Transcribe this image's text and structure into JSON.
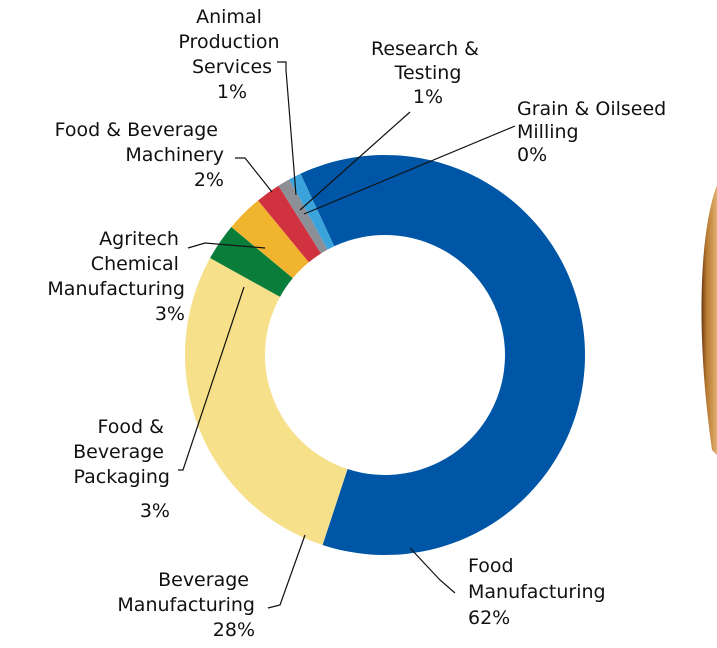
{
  "chart_data": {
    "type": "donut",
    "categories": [
      "Food Manufacturing",
      "Beverage Manufacturing",
      "Food & Beverage Packaging",
      "Agritech Chemical Manufacturing",
      "Food & Beverage Machinery",
      "Animal Production Services",
      "Research & Testing",
      "Grain & Oilseed Milling"
    ],
    "values": [
      62,
      28,
      3,
      3,
      2,
      1,
      1,
      0
    ],
    "value_labels": [
      "62%",
      "28%",
      "3%",
      "3%",
      "2%",
      "1%",
      "1%",
      "0%"
    ],
    "colors": [
      "#0056a6",
      "#f6e08a",
      "#0b7d3b",
      "#f1b42f",
      "#d1323f",
      "#8c9096",
      "#3ba3dc",
      "#4a4f56"
    ]
  }
}
